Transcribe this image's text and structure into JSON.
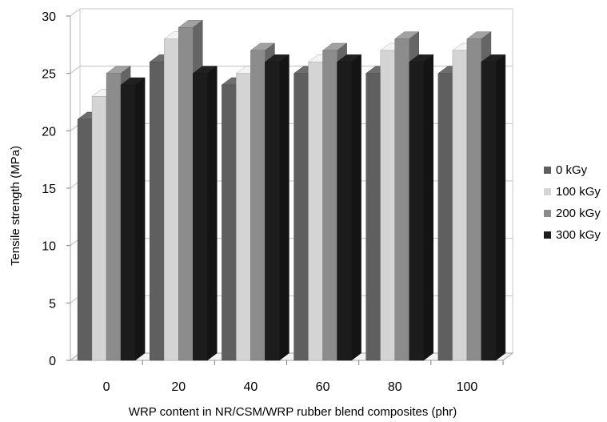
{
  "chart_data": {
    "type": "bar",
    "title": "",
    "xlabel": "WRP content in NR/CSM/WRP rubber blend composites (phr)",
    "ylabel": "Tensile strength (MPa)",
    "categories": [
      "0",
      "20",
      "40",
      "60",
      "80",
      "100"
    ],
    "ylim": [
      0,
      30
    ],
    "yticks": [
      0,
      5,
      10,
      15,
      20,
      25,
      30
    ],
    "grid": "horizontal major gridlines",
    "legend": "right",
    "style": "3D clustered column",
    "series": [
      {
        "name": "0 kGy",
        "values": [
          21,
          26,
          24,
          25,
          25,
          25
        ],
        "color": "#5f5f5f"
      },
      {
        "name": "100 kGy",
        "values": [
          23,
          28,
          25,
          26,
          27,
          27
        ],
        "color": "#d4d4d4"
      },
      {
        "name": "200 kGy",
        "values": [
          25,
          29,
          27,
          27,
          28,
          28
        ],
        "color": "#8c8c8c"
      },
      {
        "name": "300 kGy",
        "values": [
          24,
          25,
          26,
          26,
          26,
          26
        ],
        "color": "#1c1c1c"
      }
    ]
  }
}
